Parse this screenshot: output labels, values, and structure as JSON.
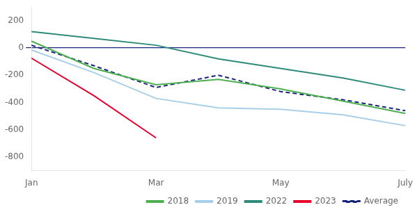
{
  "chart_data": {
    "type": "line",
    "categories": [
      "Jan",
      null,
      "Mar",
      null,
      "May",
      null,
      "July"
    ],
    "series": [
      {
        "name": "2018",
        "color": "#4caf50",
        "values": [
          50,
          -150,
          -270,
          -230,
          -300,
          -390,
          -480
        ]
      },
      {
        "name": "2019",
        "color": "#a8cfe8",
        "values": [
          -15,
          -180,
          -370,
          -440,
          -450,
          -490,
          -570
        ]
      },
      {
        "name": "2022",
        "color": "#2e8b7a",
        "values": [
          120,
          70,
          20,
          -80,
          -150,
          -220,
          -310
        ]
      },
      {
        "name": "2023",
        "color": "#e8002d",
        "values": [
          -75,
          -350,
          -660,
          null,
          null,
          null,
          null
        ]
      },
      {
        "name": "Average",
        "color": "#1a237e",
        "line_style": "dashed",
        "values": [
          20,
          -130,
          -290,
          -200,
          -320,
          -380,
          -460
        ]
      }
    ],
    "ylim": [
      -900,
      300
    ],
    "yticks": [
      -800,
      -600,
      -400,
      -200,
      0,
      200
    ],
    "grid": false,
    "legend": "lower right"
  }
}
